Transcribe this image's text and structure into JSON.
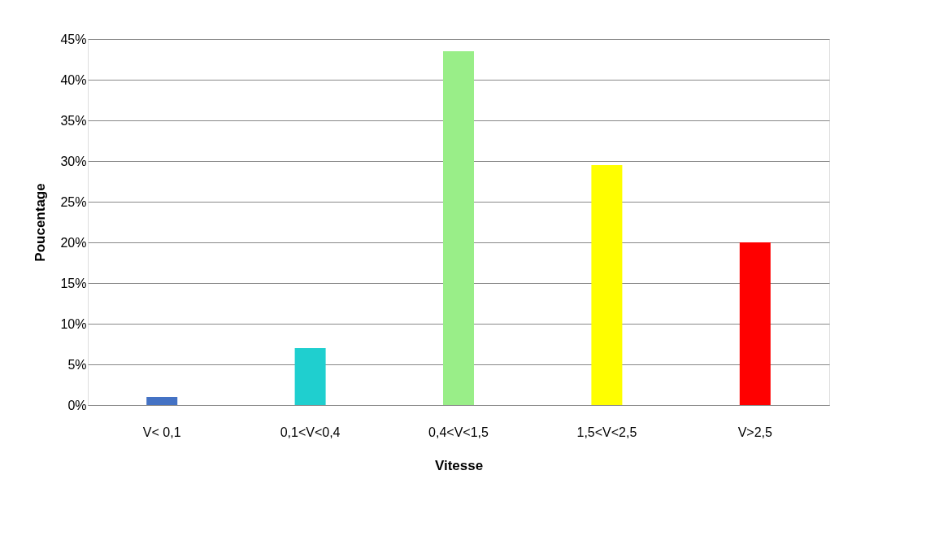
{
  "chart_data": {
    "type": "bar",
    "xlabel": "Vitesse",
    "ylabel": "Poucentage",
    "categories": [
      "V< 0,1",
      "0,1<V<0,4",
      "0,4<V<1,5",
      "1,5<V<2,5",
      "V>2,5"
    ],
    "values": [
      1,
      7,
      43.5,
      29.5,
      20
    ],
    "colors": [
      "#4472c4",
      "#1fcfcf",
      "#99ee88",
      "#ffff00",
      "#ff0000"
    ],
    "ylim": [
      0,
      45
    ],
    "yticks": [
      {
        "value": 0,
        "label": "0%"
      },
      {
        "value": 5,
        "label": "5%"
      },
      {
        "value": 10,
        "label": "10%"
      },
      {
        "value": 15,
        "label": "15%"
      },
      {
        "value": 20,
        "label": "20%"
      },
      {
        "value": 25,
        "label": "25%"
      },
      {
        "value": 30,
        "label": "30%"
      },
      {
        "value": 35,
        "label": "35%"
      },
      {
        "value": 40,
        "label": "40%"
      },
      {
        "value": 45,
        "label": "45%"
      }
    ],
    "grid": "y",
    "legend": false
  }
}
